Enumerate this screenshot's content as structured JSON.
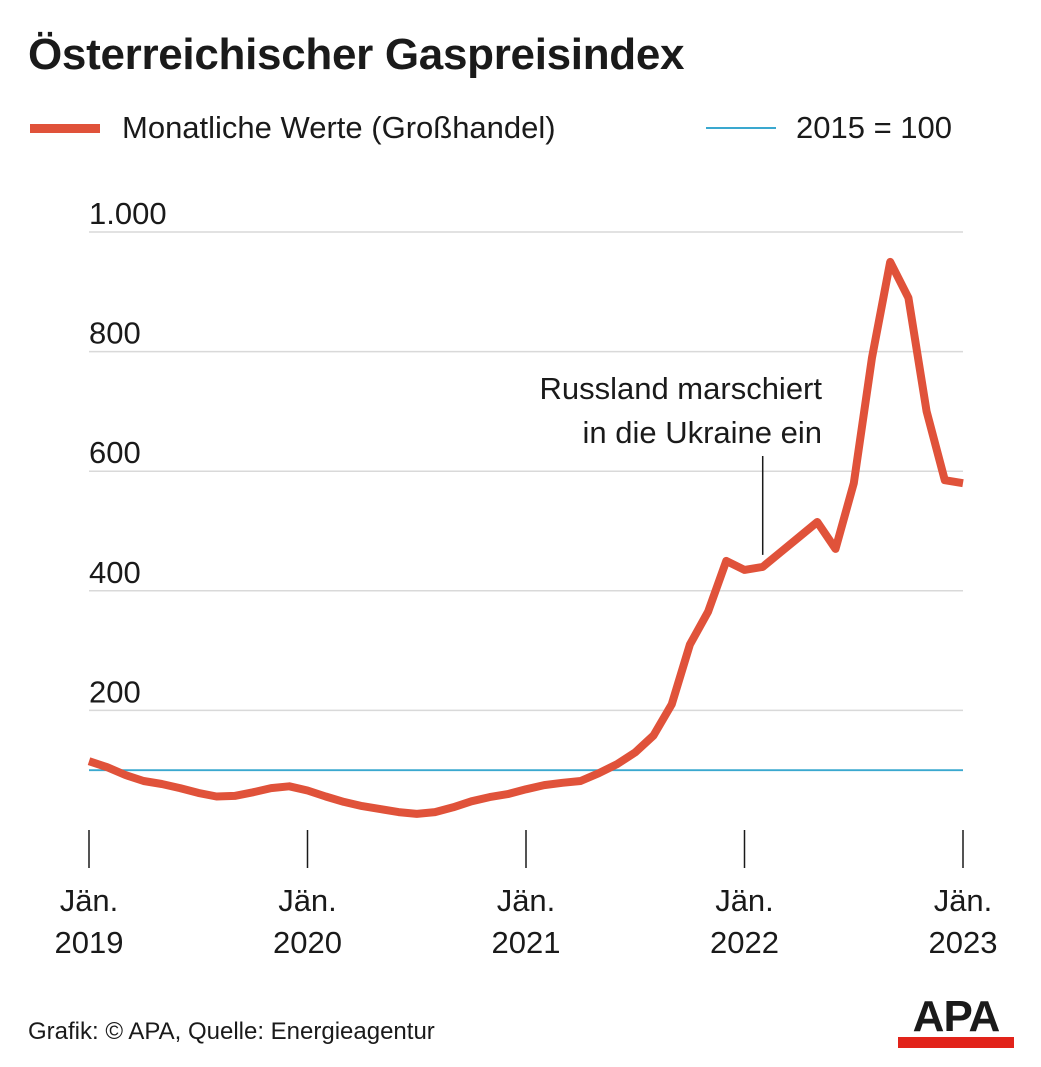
{
  "title": "Österreichischer Gaspreisindex",
  "source": "Grafik: © APA, Quelle: Energieagentur",
  "logo": {
    "text": "APA",
    "bar_color": "#e2231a"
  },
  "colors": {
    "series": "#e0523a",
    "reference": "#3aa8cf",
    "grid": "#d9d9d9",
    "axis": "#1a1a1a"
  },
  "chart_data": {
    "type": "line",
    "title": "Österreichischer Gaspreisindex",
    "xlabel": "",
    "ylabel": "",
    "ylim": [
      0,
      1000
    ],
    "yticks": [
      200,
      400,
      600,
      800,
      1000
    ],
    "ytick_labels": [
      "200",
      "400",
      "600",
      "800",
      "1.000"
    ],
    "grid": true,
    "legend_position": "top",
    "xtick_labels": [
      {
        "month": "2019-01",
        "line1": "Jän.",
        "line2": "2019"
      },
      {
        "month": "2020-01",
        "line1": "Jän.",
        "line2": "2020"
      },
      {
        "month": "2021-01",
        "line1": "Jän.",
        "line2": "2021"
      },
      {
        "month": "2022-01",
        "line1": "Jän.",
        "line2": "2022"
      },
      {
        "month": "2023-01",
        "line1": "Jän.",
        "line2": "2023"
      }
    ],
    "series": [
      {
        "name": "Monatliche Werte (Großhandel)",
        "color": "#e0523a",
        "x": [
          "2019-01",
          "2019-02",
          "2019-03",
          "2019-04",
          "2019-05",
          "2019-06",
          "2019-07",
          "2019-08",
          "2019-09",
          "2019-10",
          "2019-11",
          "2019-12",
          "2020-01",
          "2020-02",
          "2020-03",
          "2020-04",
          "2020-05",
          "2020-06",
          "2020-07",
          "2020-08",
          "2020-09",
          "2020-10",
          "2020-11",
          "2020-12",
          "2021-01",
          "2021-02",
          "2021-03",
          "2021-04",
          "2021-05",
          "2021-06",
          "2021-07",
          "2021-08",
          "2021-09",
          "2021-10",
          "2021-11",
          "2021-12",
          "2022-01",
          "2022-02",
          "2022-03",
          "2022-04",
          "2022-05",
          "2022-06",
          "2022-07",
          "2022-08",
          "2022-09",
          "2022-10",
          "2022-11",
          "2022-12",
          "2023-01"
        ],
        "values": [
          115,
          105,
          92,
          82,
          77,
          70,
          62,
          56,
          57,
          63,
          70,
          73,
          66,
          56,
          47,
          40,
          35,
          30,
          27,
          30,
          38,
          48,
          55,
          60,
          68,
          75,
          79,
          82,
          95,
          110,
          130,
          158,
          210,
          310,
          365,
          450,
          435,
          440,
          465,
          490,
          515,
          470,
          580,
          790,
          950,
          890,
          700,
          585,
          580
        ]
      },
      {
        "name": "2015 = 100",
        "color": "#3aa8cf",
        "reference": true,
        "value": 100
      }
    ],
    "annotations": [
      {
        "text_lines": [
          "Russland marschiert",
          "in die Ukraine ein"
        ],
        "month": "2022-02"
      }
    ]
  }
}
